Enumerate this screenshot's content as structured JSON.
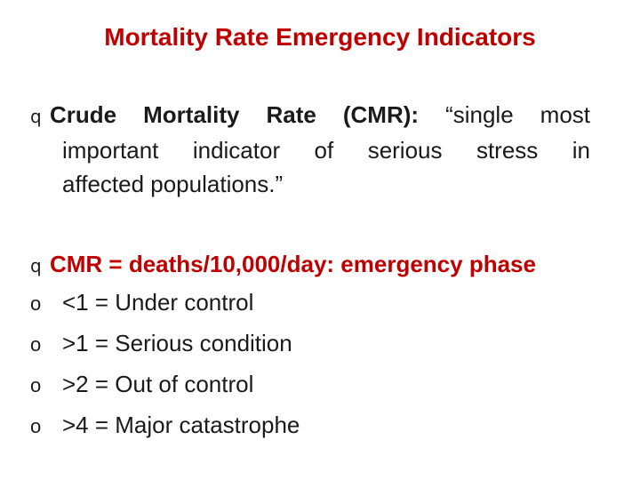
{
  "title": "Mortality Rate Emergency Indicators",
  "bullets": {
    "main_marker": "q",
    "sub_marker": "o",
    "cmr_definition": {
      "term": "Crude Mortality Rate (CMR):",
      "line1_rest": "“single most",
      "line2": "important indicator of serious stress in",
      "line3": "affected populations.”"
    },
    "cmr_formula": "CMR = deaths/10,000/day: emergency phase",
    "thresholds": [
      "<1 = Under control",
      ">1 = Serious condition",
      ">2 = Out of control",
      ">4 = Major catastrophe"
    ]
  },
  "colors": {
    "title": "#c00000",
    "accent": "#c00000",
    "body_text": "#1a1a1a"
  }
}
